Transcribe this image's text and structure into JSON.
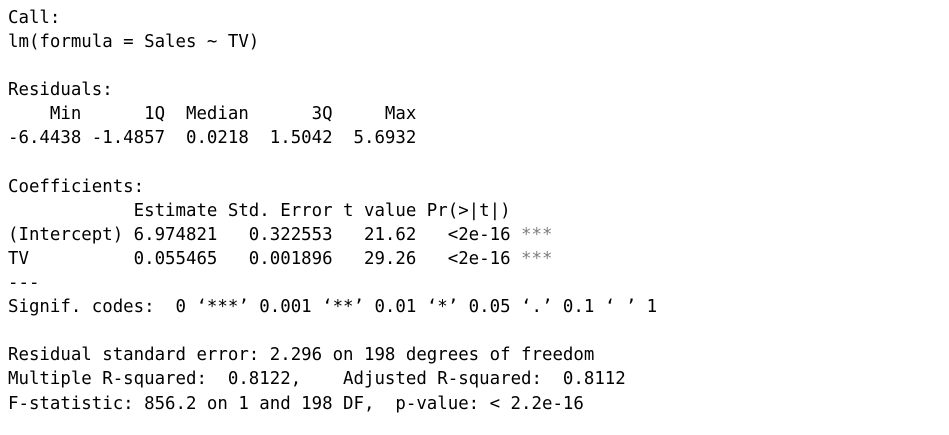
{
  "call": {
    "heading": "Call:",
    "formula": "lm(formula = Sales ~ TV)"
  },
  "residuals": {
    "heading": "Residuals:",
    "header_row": "    Min      1Q  Median      3Q     Max ",
    "values_row": "-6.4438 -1.4857  0.0218  1.5042  5.6932 "
  },
  "coefficients": {
    "heading": "Coefficients:",
    "header_row": "            Estimate Std. Error t value Pr(>|t|)    ",
    "rows": [
      {
        "label": "(Intercept) 6.974821   0.322553   21.62   <2e-16 ",
        "stars": "***"
      },
      {
        "label": "TV          0.055465   0.001896   29.26   <2e-16 ",
        "stars": "***"
      }
    ],
    "separator": "---",
    "signif_codes": "Signif. codes:  0 ‘***’ 0.001 ‘**’ 0.01 ‘*’ 0.05 ‘.’ 0.1 ‘ ’ 1"
  },
  "summary": {
    "rse": "Residual standard error: 2.296 on 198 degrees of freedom",
    "r_squared": "Multiple R-squared:  0.8122,\tAdjusted R-squared:  0.8112 ",
    "f_statistic": "F-statistic: 856.2 on 1 and 198 DF,  p-value: < 2.2e-16"
  },
  "colors": {
    "text": "#000000",
    "background": "#ffffff",
    "significance_stars": "#808080"
  }
}
